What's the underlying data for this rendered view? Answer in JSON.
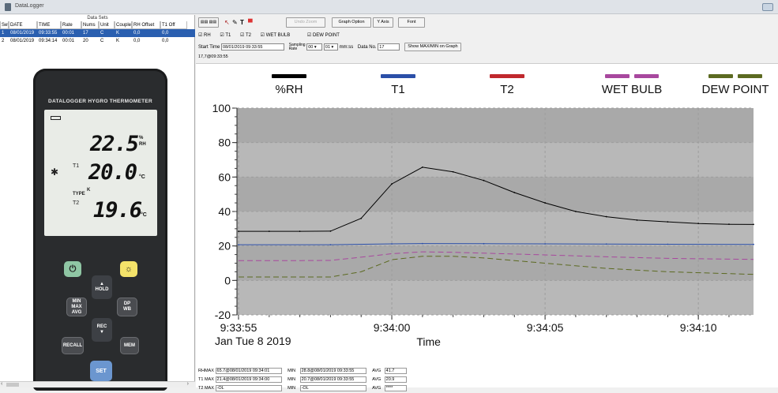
{
  "app": {
    "title": "DataLogger"
  },
  "datasets": {
    "caption": "Data Sets",
    "columns": [
      "Set",
      "DATE",
      "TIME",
      "Rate",
      "Nums",
      "Unit",
      "Couple",
      "RH Offset",
      "T1 Off"
    ],
    "rows": [
      {
        "set": "1",
        "date": "08/01/2019",
        "time": "09:33:55",
        "rate": "00:01",
        "nums": "17",
        "unit": "C",
        "couple": "K",
        "rh_offset": "0,0",
        "t1_offset": "0,0",
        "selected": true
      },
      {
        "set": "2",
        "date": "08/01/2019",
        "time": "09:34:14",
        "rate": "00:01",
        "nums": "20",
        "unit": "C",
        "couple": "K",
        "rh_offset": "0,0",
        "t1_offset": "0,0",
        "selected": false
      }
    ]
  },
  "device": {
    "title": "DATALOGGER HYGRO THERMOMETER",
    "rh_value": "22.5",
    "rh_unit_top": "%",
    "rh_unit_bottom": "RH",
    "t1_label": "T1",
    "t1_value": "20.0",
    "t1_unit": "°C",
    "type_label": "TYPE",
    "type_value": "K",
    "t2_label": "T2",
    "t2_value": "19.6",
    "t2_unit": "°C",
    "buttons": {
      "hold": "HOLD",
      "min": "MIN",
      "max": "MAX",
      "avg": "AVG",
      "dp": "DP",
      "wb": "WB",
      "rec": "REC",
      "recall": "RECALL",
      "mem": "MEM",
      "set": "SET"
    }
  },
  "toolbar": {
    "undo_zoom": "Undo Zoom",
    "graph_option": "Graph Option",
    "y_axis": "Y Axis",
    "font": "Font"
  },
  "series_toggles": [
    {
      "label": "RH",
      "checked": true
    },
    {
      "label": "T1",
      "checked": true
    },
    {
      "label": "T2",
      "checked": true
    },
    {
      "label": "WET BULB",
      "checked": true
    },
    {
      "label": "DEW POINT",
      "checked": true
    }
  ],
  "controls": {
    "start_time_label": "Start Time",
    "start_time_value": "08/01/2019 09:33:55",
    "sampling_label_top": "Sampling",
    "sampling_label_bottom": "Rate",
    "sampling_min": "00",
    "sampling_sec": "01",
    "sampling_format": "mm:ss",
    "data_no_label": "Data No.",
    "data_no_value": "17",
    "show_btn": "Show MAX/MIN on Graph",
    "readout": "17,7@09:33:55"
  },
  "chart_data": {
    "type": "line",
    "ylim": [
      -20,
      100
    ],
    "yticks": [
      "-20",
      "0",
      "20",
      "40",
      "60",
      "80",
      "100"
    ],
    "x_tick_labels": [
      "9:33:55",
      "9:34:00",
      "9:34:05",
      "9:34:10"
    ],
    "date_label": "Jan Tue 8 2019",
    "xlabel": "Time",
    "x_seconds_range": [
      0,
      16.8
    ],
    "background": "#b8b8b8",
    "series": [
      {
        "name": "%RH",
        "color": "#000000",
        "dash": false,
        "x": [
          0,
          1,
          2,
          3,
          4,
          5,
          6,
          7,
          8,
          9,
          10,
          11,
          12,
          13,
          14,
          15,
          16,
          16.8
        ],
        "values": [
          28.5,
          28.5,
          28.5,
          28.6,
          36,
          56,
          65.7,
          63,
          58,
          51,
          45,
          40,
          37,
          35,
          34,
          33,
          32.6,
          32.5
        ]
      },
      {
        "name": "T1",
        "color": "#2b4fa8",
        "dash": false,
        "x": [
          0,
          3,
          5,
          6,
          8,
          10,
          12,
          14,
          16.8
        ],
        "values": [
          20.7,
          20.7,
          21.2,
          21.4,
          21.3,
          21.2,
          21.1,
          21.0,
          20.9
        ]
      },
      {
        "name": "T2",
        "color": "#c0282d",
        "dash": false,
        "x": [],
        "values": []
      },
      {
        "name": "WET BULB",
        "color": "#a8489e",
        "dash": true,
        "x": [
          0,
          2,
          3,
          4,
          5,
          6,
          7,
          8,
          10,
          12,
          14,
          16.8
        ],
        "values": [
          11.5,
          11.5,
          11.6,
          13.5,
          15.5,
          16.6,
          16.3,
          15.8,
          14.8,
          13.7,
          12.8,
          12.2
        ]
      },
      {
        "name": "DEW POINT",
        "color": "#5c6a21",
        "dash": true,
        "x": [
          0,
          2,
          3,
          4,
          5,
          6,
          7,
          8,
          10,
          12,
          14,
          16.8
        ],
        "values": [
          2,
          2,
          2,
          5,
          12,
          14,
          14,
          13,
          10,
          7,
          5,
          3.5
        ]
      }
    ]
  },
  "stats": {
    "rows": [
      {
        "max_label": "RHMAX",
        "max_value": "65.7@08/01/2019 09:34:01",
        "min_label": "MIN",
        "min_value": "28.8@08/01/2019 09:33:55",
        "avg_label": "AVG",
        "avg_value": "41.7"
      },
      {
        "max_label": "T1 MAX",
        "max_value": "21.4@08/01/2019 09:34:00",
        "min_label": "MIN",
        "min_value": "20.7@08/01/2019 09:33:55",
        "avg_label": "AVG",
        "avg_value": "20.9"
      },
      {
        "max_label": "T2 MAX",
        "max_value": "-OL",
        "min_label": "MIN",
        "min_value": "-OL",
        "avg_label": "AVG",
        "avg_value": "****"
      }
    ]
  }
}
